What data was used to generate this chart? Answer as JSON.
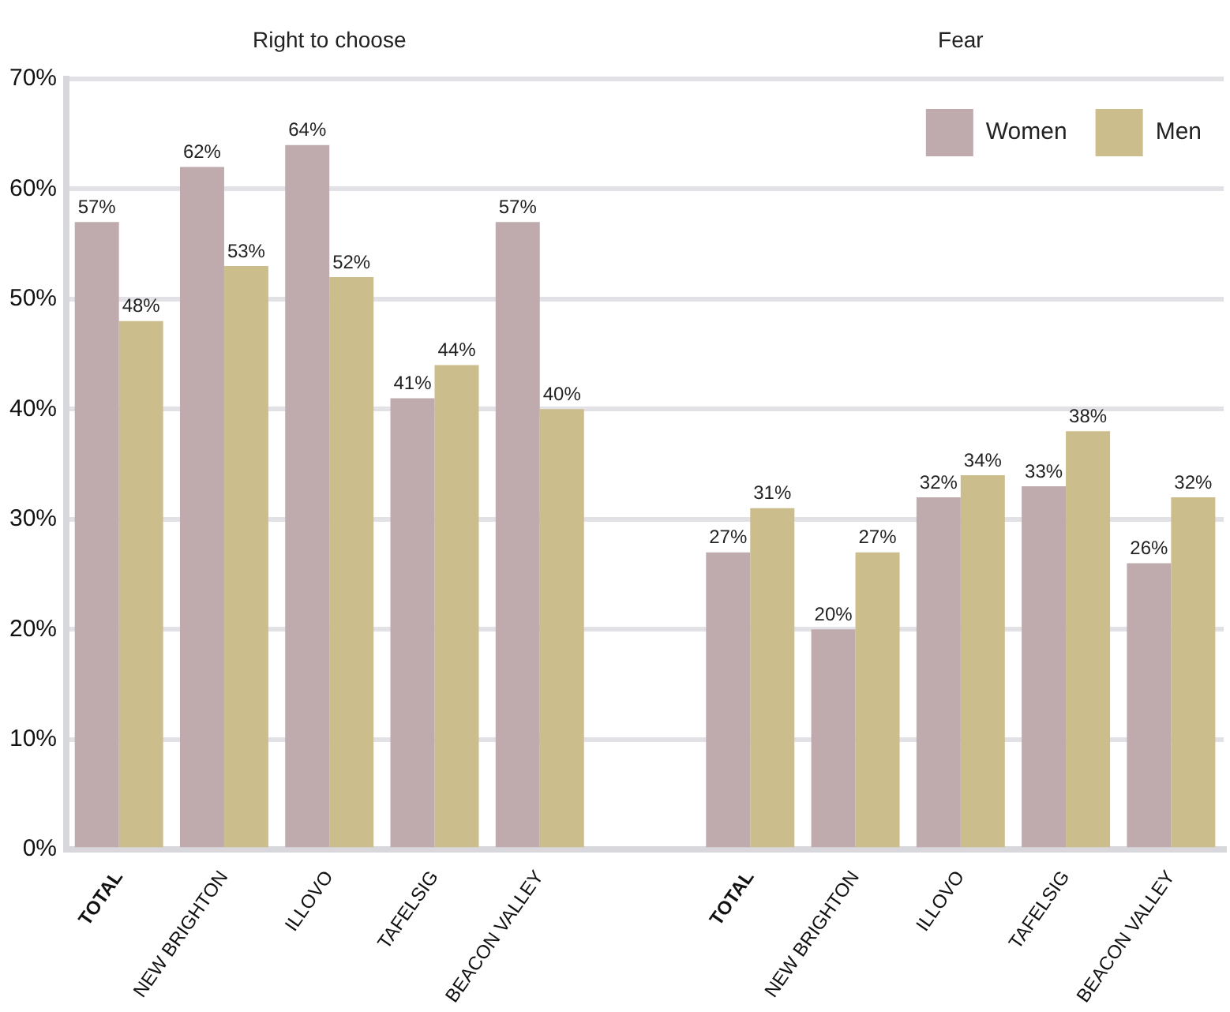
{
  "chart_data": {
    "type": "bar",
    "annotations": [
      "Right to choose",
      "Fear"
    ],
    "categories": [
      "TOTAL",
      "NEW BRIGHTON",
      "ILLOVO",
      "TAFELSIG",
      "BEACON VALLEY",
      null,
      "TOTAL",
      "NEW BRIGHTON",
      "ILLOVO",
      "TAFELSIG",
      "BEACON VALLEY"
    ],
    "series": [
      {
        "name": "Women",
        "color": "#bfabae",
        "values": [
          57,
          62,
          64,
          41,
          57,
          null,
          27,
          20,
          32,
          33,
          26
        ],
        "value_labels": [
          "57%",
          "62%",
          "64%",
          "41%",
          "57%",
          null,
          "27%",
          "20%",
          "32%",
          "33%",
          "26%"
        ]
      },
      {
        "name": "Men",
        "color": "#cbbd8c",
        "values": [
          48,
          53,
          52,
          44,
          40,
          null,
          31,
          27,
          34,
          38,
          32
        ],
        "value_labels": [
          "48%",
          "53%",
          "52%",
          "44%",
          "40%",
          null,
          "31%",
          "27%",
          "34%",
          "38%",
          "32%"
        ]
      }
    ],
    "ylim": [
      0,
      70
    ],
    "yticks": [
      {
        "value": 0,
        "label": "0%"
      },
      {
        "value": 10,
        "label": "10%"
      },
      {
        "value": 20,
        "label": "20%"
      },
      {
        "value": 30,
        "label": "30%"
      },
      {
        "value": 40,
        "label": "40%"
      },
      {
        "value": 50,
        "label": "50%"
      },
      {
        "value": 60,
        "label": "60%"
      },
      {
        "value": 70,
        "label": "70%"
      }
    ],
    "grid": "y",
    "legend": "top right"
  }
}
